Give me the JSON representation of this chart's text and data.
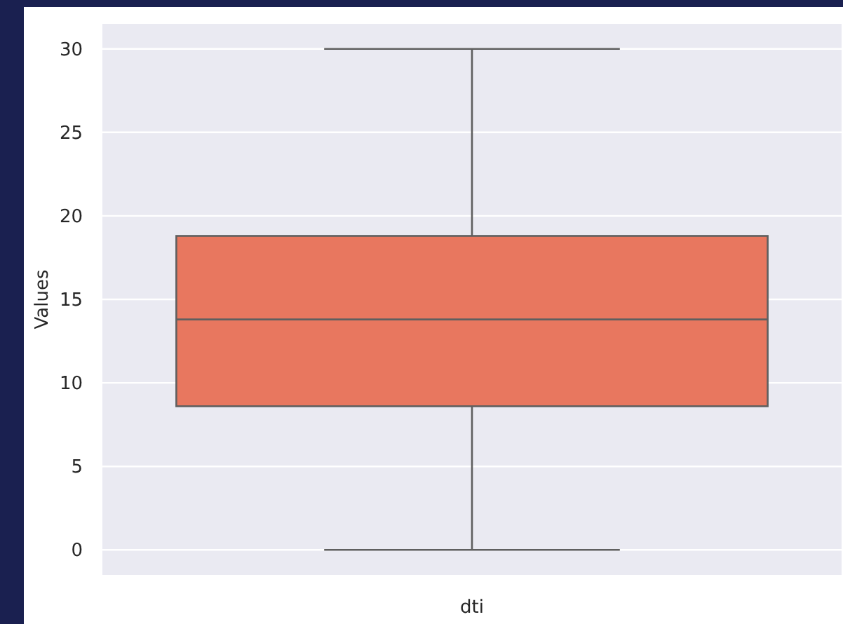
{
  "chart_data": {
    "type": "box",
    "ylabel": "Values",
    "categories": [
      "dti"
    ],
    "boxes": [
      {
        "low": 0,
        "q1": 8.6,
        "median": 13.8,
        "q3": 18.8,
        "high": 30
      }
    ],
    "color": "#e8775f",
    "ylim": [
      -1.5,
      31.5
    ],
    "yticks": [
      0,
      5,
      10,
      15,
      20,
      25,
      30
    ],
    "grid": "y"
  }
}
